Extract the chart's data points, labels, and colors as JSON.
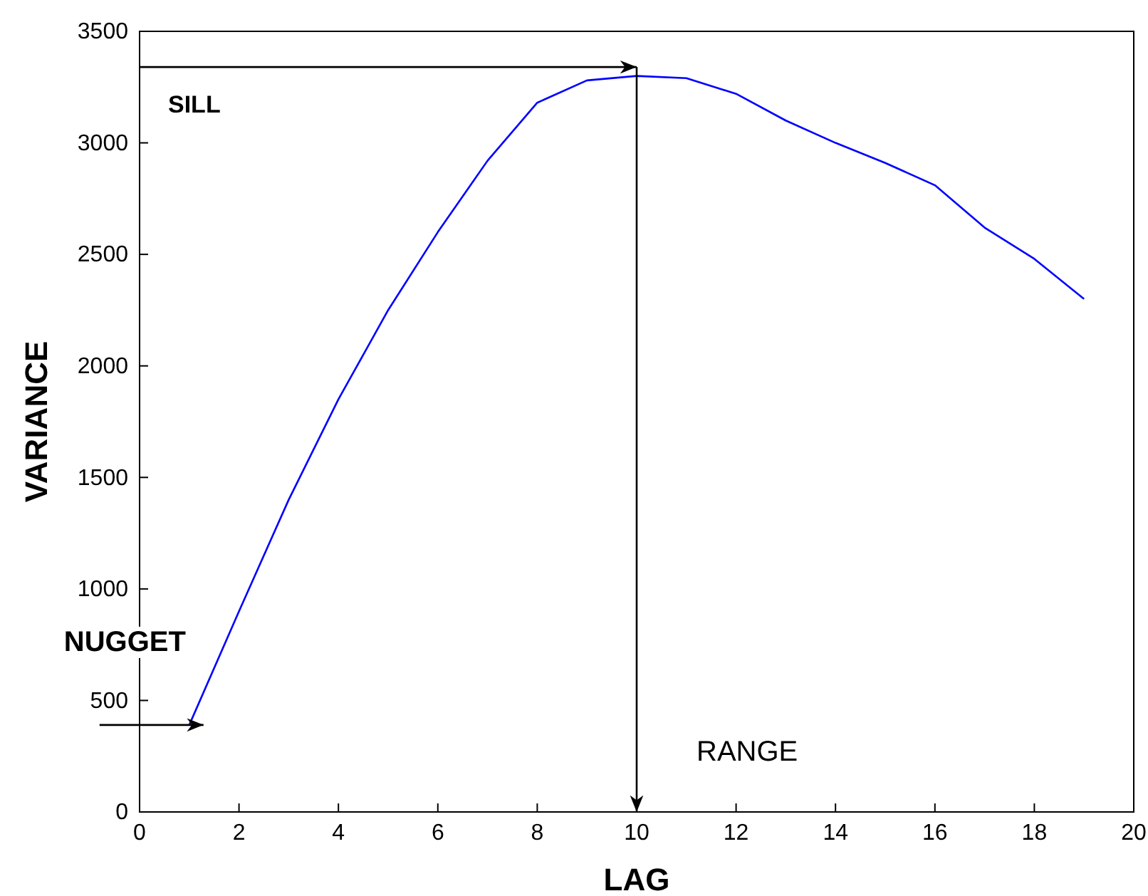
{
  "chart_data": {
    "type": "line",
    "xlabel": "LAG",
    "ylabel": "VARIANCE",
    "x": [
      1,
      2,
      3,
      4,
      5,
      6,
      7,
      8,
      9,
      10,
      11,
      12,
      13,
      14,
      15,
      16,
      17,
      18,
      19
    ],
    "series": [
      {
        "color": "#0000ff",
        "values": [
          390,
          900,
          1400,
          1850,
          2250,
          2600,
          2920,
          3180,
          3280,
          3300,
          3290,
          3220,
          3100,
          3000,
          2910,
          2810,
          2620,
          2480,
          2300
        ]
      }
    ],
    "xlim": [
      0,
      20
    ],
    "xticks": [
      0,
      2,
      4,
      6,
      8,
      10,
      12,
      14,
      16,
      18,
      20
    ],
    "ylim": [
      0,
      3500
    ],
    "yticks": [
      0,
      500,
      1000,
      1500,
      2000,
      2500,
      3000,
      3500
    ],
    "ref_lines": [
      {
        "axis": "y",
        "value": 3340,
        "label": "SILL",
        "color": "#000000"
      },
      {
        "axis": "x",
        "value": 10,
        "label": "RANGE",
        "color": "#000000"
      }
    ],
    "annotations": [
      {
        "text": "NUGGET",
        "x": 1,
        "y": 390
      }
    ]
  }
}
